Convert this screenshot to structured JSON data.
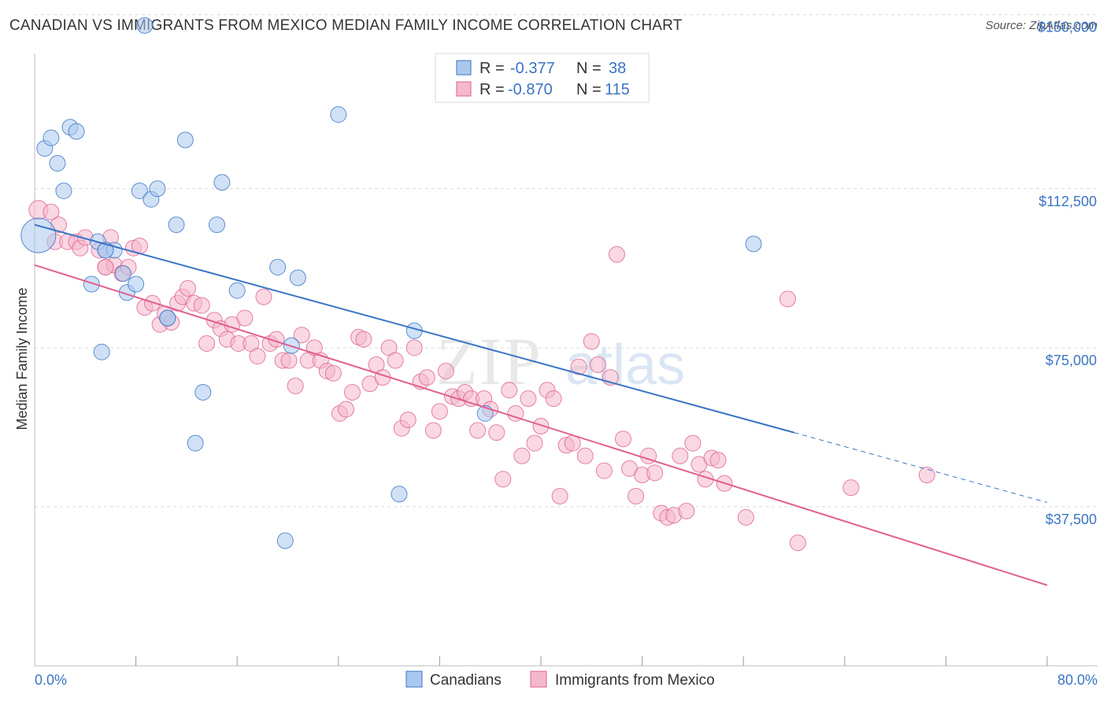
{
  "header": {
    "title": "CANADIAN VS IMMIGRANTS FROM MEXICO MEDIAN FAMILY INCOME CORRELATION CHART",
    "source": "Source: ZipAtlas.com"
  },
  "colors": {
    "blue": "#3a74c4",
    "blue_fill": "#aac8ee",
    "pink": "#e0608e",
    "pink_fill": "#f4b8cc",
    "grid": "#d9d9d9"
  },
  "watermark": {
    "part1": "ZIP",
    "part2": "atlas"
  },
  "legend_top": {
    "rows": [
      {
        "r_label": "R =",
        "r_value": "-0.377",
        "n_label": "N =",
        "n_value": "38"
      },
      {
        "r_label": "R =",
        "r_value": "-0.870",
        "n_label": "N =",
        "n_value": "115"
      }
    ]
  },
  "legend_bottom": {
    "items": [
      {
        "label": "Canadians"
      },
      {
        "label": "Immigrants from Mexico"
      }
    ]
  },
  "chart_data": {
    "type": "scatter",
    "title": "CANADIAN VS IMMIGRANTS FROM MEXICO MEDIAN FAMILY INCOME CORRELATION CHART",
    "xlabel": "",
    "ylabel": "Median Family Income",
    "xlim": [
      0,
      80
    ],
    "ylim": [
      0,
      157000
    ],
    "x_tick_labels": [
      "0.0%",
      "80.0%"
    ],
    "y_ticks": [
      37500,
      75000,
      112500,
      150000
    ],
    "y_tick_labels": [
      "$37,500",
      "$75,000",
      "$112,500",
      "$150,000"
    ],
    "grid": true,
    "series": [
      {
        "name": "Canadians",
        "color": "#3a74c4",
        "stats": {
          "R": -0.377,
          "N": 38
        },
        "trend": {
          "x0": 0,
          "y0": 104000,
          "x1": 60,
          "y1": 55000,
          "dashed_to_x": 80,
          "dashed_to_y": 38500
        },
        "points": [
          [
            0.3,
            101500,
            22
          ],
          [
            0.8,
            122000,
            10
          ],
          [
            1.3,
            124500,
            10
          ],
          [
            1.8,
            118500,
            10
          ],
          [
            2.3,
            112000,
            10
          ],
          [
            2.8,
            127000,
            10
          ],
          [
            3.3,
            126000,
            10
          ],
          [
            5.0,
            100000,
            10
          ],
          [
            5.6,
            98000,
            10
          ],
          [
            4.5,
            90000,
            10
          ],
          [
            5.3,
            74000,
            10
          ],
          [
            6.3,
            98000,
            10
          ],
          [
            7.0,
            92500,
            10
          ],
          [
            7.3,
            88000,
            10
          ],
          [
            8.0,
            90000,
            10
          ],
          [
            8.3,
            112000,
            10
          ],
          [
            8.7,
            151000,
            10
          ],
          [
            9.2,
            110000,
            10
          ],
          [
            9.7,
            112500,
            10
          ],
          [
            10.5,
            82000,
            10
          ],
          [
            11.2,
            104000,
            10
          ],
          [
            11.9,
            124000,
            10
          ],
          [
            12.7,
            52500,
            10
          ],
          [
            13.3,
            64500,
            10
          ],
          [
            14.4,
            104000,
            10
          ],
          [
            14.8,
            114000,
            10
          ],
          [
            16.0,
            88500,
            10
          ],
          [
            19.2,
            94000,
            10
          ],
          [
            19.8,
            29500,
            10
          ],
          [
            20.3,
            75500,
            10
          ],
          [
            20.8,
            91500,
            10
          ],
          [
            24.0,
            130000,
            10
          ],
          [
            28.8,
            40500,
            10
          ],
          [
            30.0,
            79000,
            10
          ],
          [
            35.6,
            59500,
            10
          ],
          [
            56.8,
            99500,
            10
          ],
          [
            10.5,
            82000,
            10
          ],
          [
            5.6,
            98000,
            10
          ]
        ]
      },
      {
        "name": "Immigrants from Mexico",
        "color": "#e0608e",
        "stats": {
          "R": -0.87,
          "N": 115
        },
        "trend": {
          "x0": 0,
          "y0": 94500,
          "x1": 80,
          "y1": 19000
        },
        "points": [
          [
            0.3,
            107500,
            12
          ],
          [
            1.3,
            107000,
            10
          ],
          [
            1.9,
            104000,
            10
          ],
          [
            1.6,
            100000,
            10
          ],
          [
            2.6,
            100000,
            10
          ],
          [
            3.3,
            100000,
            10
          ],
          [
            3.6,
            98500,
            10
          ],
          [
            4.0,
            101000,
            10
          ],
          [
            5.1,
            98000,
            10
          ],
          [
            5.6,
            94000,
            10
          ],
          [
            6.0,
            101000,
            10
          ],
          [
            6.3,
            94500,
            10
          ],
          [
            6.9,
            92500,
            10
          ],
          [
            7.4,
            94000,
            10
          ],
          [
            7.8,
            98500,
            10
          ],
          [
            8.3,
            99000,
            10
          ],
          [
            8.7,
            84500,
            10
          ],
          [
            9.3,
            85500,
            10
          ],
          [
            9.9,
            80500,
            10
          ],
          [
            10.3,
            83000,
            10
          ],
          [
            10.8,
            81000,
            10
          ],
          [
            11.3,
            85500,
            10
          ],
          [
            11.7,
            87000,
            10
          ],
          [
            12.1,
            89000,
            10
          ],
          [
            12.6,
            85500,
            10
          ],
          [
            13.2,
            85000,
            10
          ],
          [
            13.6,
            76000,
            10
          ],
          [
            14.2,
            81500,
            10
          ],
          [
            14.7,
            79500,
            10
          ],
          [
            15.2,
            77000,
            10
          ],
          [
            15.6,
            80500,
            10
          ],
          [
            16.1,
            76000,
            10
          ],
          [
            16.6,
            82000,
            10
          ],
          [
            17.1,
            76000,
            10
          ],
          [
            17.6,
            73000,
            10
          ],
          [
            18.1,
            87000,
            10
          ],
          [
            18.6,
            76000,
            10
          ],
          [
            19.1,
            77000,
            10
          ],
          [
            19.6,
            72000,
            10
          ],
          [
            20.1,
            72000,
            10
          ],
          [
            20.6,
            66000,
            10
          ],
          [
            21.1,
            78000,
            10
          ],
          [
            21.6,
            72000,
            10
          ],
          [
            22.1,
            75000,
            10
          ],
          [
            22.6,
            72000,
            10
          ],
          [
            23.1,
            69500,
            10
          ],
          [
            23.6,
            69000,
            10
          ],
          [
            24.1,
            59500,
            10
          ],
          [
            24.6,
            60500,
            10
          ],
          [
            25.1,
            64500,
            10
          ],
          [
            25.6,
            77500,
            10
          ],
          [
            26.0,
            77000,
            10
          ],
          [
            26.5,
            66500,
            10
          ],
          [
            27.0,
            71000,
            10
          ],
          [
            27.5,
            68000,
            10
          ],
          [
            28.0,
            75000,
            10
          ],
          [
            28.5,
            72000,
            10
          ],
          [
            29.0,
            56000,
            10
          ],
          [
            29.5,
            58000,
            10
          ],
          [
            30.0,
            75000,
            10
          ],
          [
            30.5,
            67000,
            10
          ],
          [
            31.0,
            68000,
            10
          ],
          [
            31.5,
            55500,
            10
          ],
          [
            32.0,
            60000,
            10
          ],
          [
            32.5,
            69500,
            10
          ],
          [
            33.0,
            63500,
            10
          ],
          [
            33.5,
            63000,
            10
          ],
          [
            34.0,
            64500,
            10
          ],
          [
            34.5,
            63000,
            10
          ],
          [
            35.0,
            55500,
            10
          ],
          [
            35.5,
            63000,
            10
          ],
          [
            36.0,
            60500,
            10
          ],
          [
            36.5,
            55000,
            10
          ],
          [
            37.0,
            44000,
            10
          ],
          [
            37.5,
            65000,
            10
          ],
          [
            38.0,
            59500,
            10
          ],
          [
            38.5,
            49500,
            10
          ],
          [
            39.0,
            63000,
            10
          ],
          [
            39.5,
            52500,
            10
          ],
          [
            40.0,
            56500,
            10
          ],
          [
            40.5,
            65000,
            10
          ],
          [
            41.0,
            63000,
            10
          ],
          [
            41.5,
            40000,
            10
          ],
          [
            42.0,
            52000,
            10
          ],
          [
            42.5,
            52500,
            10
          ],
          [
            43.0,
            70500,
            10
          ],
          [
            43.5,
            49500,
            10
          ],
          [
            44.0,
            76500,
            10
          ],
          [
            44.5,
            71000,
            10
          ],
          [
            45.0,
            46000,
            10
          ],
          [
            45.5,
            68000,
            10
          ],
          [
            46.0,
            97000,
            10
          ],
          [
            46.5,
            53500,
            10
          ],
          [
            47.0,
            46500,
            10
          ],
          [
            47.5,
            40000,
            10
          ],
          [
            48.0,
            45000,
            10
          ],
          [
            48.5,
            49500,
            10
          ],
          [
            49.0,
            45500,
            10
          ],
          [
            49.5,
            36000,
            10
          ],
          [
            50.0,
            35000,
            10
          ],
          [
            50.5,
            35500,
            10
          ],
          [
            51.0,
            49500,
            10
          ],
          [
            51.5,
            36500,
            10
          ],
          [
            52.0,
            52500,
            10
          ],
          [
            52.5,
            47500,
            10
          ],
          [
            53.0,
            44000,
            10
          ],
          [
            53.5,
            49000,
            10
          ],
          [
            54.0,
            48500,
            10
          ],
          [
            54.5,
            43000,
            10
          ],
          [
            56.2,
            35000,
            10
          ],
          [
            59.5,
            86500,
            10
          ],
          [
            60.3,
            29000,
            10
          ],
          [
            64.5,
            42000,
            10
          ],
          [
            70.5,
            45000,
            10
          ],
          [
            5.6,
            94000,
            10
          ]
        ]
      }
    ]
  }
}
